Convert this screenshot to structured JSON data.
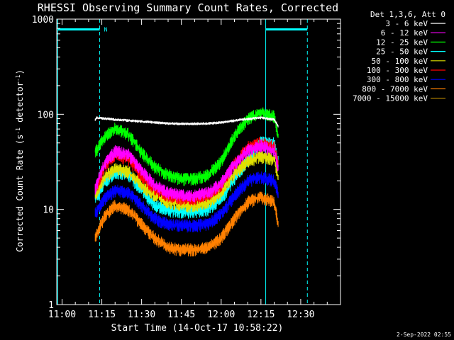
{
  "chart_data": {
    "type": "line",
    "title": "RHESSI Observing Summary Count Rates, Corrected",
    "xlabel": "Start Time (14-Oct-17 10:58:22)",
    "ylabel_main": "Corrected Count Rate (s",
    "ylabel_sup1": "-1",
    "ylabel_mid": " detector",
    "ylabel_sup2": "-1",
    "ylabel_end": ")",
    "xlim_min": [
      -2,
      105
    ],
    "ylim": [
      1,
      1000
    ],
    "y_scale": "log",
    "x_ticks": [
      {
        "t": 0,
        "label": "11:00"
      },
      {
        "t": 15,
        "label": "11:15"
      },
      {
        "t": 30,
        "label": "11:30"
      },
      {
        "t": 45,
        "label": "11:45"
      },
      {
        "t": 60,
        "label": "12:00"
      },
      {
        "t": 75,
        "label": "12:15"
      },
      {
        "t": 90,
        "label": "12:30"
      }
    ],
    "y_ticks": [
      {
        "v": 1,
        "label": "1"
      },
      {
        "v": 10,
        "label": "10"
      },
      {
        "v": 100,
        "label": "100"
      },
      {
        "v": 1000,
        "label": "1000"
      }
    ],
    "legend_header": "Det 1,3,6, Att 0",
    "legend_placement": "top-right",
    "series": [
      {
        "name": "3 - 6 keV",
        "color": "#ffffff",
        "x": [
          12.5,
          13,
          20,
          30,
          40,
          48,
          55,
          60,
          68,
          75,
          80,
          81.5
        ],
        "y": [
          88,
          92,
          88,
          84,
          80,
          79,
          80,
          82,
          88,
          92,
          88,
          75
        ]
      },
      {
        "name": "6 - 12 keV",
        "color": "#ff00ff",
        "x": [
          12.5,
          16,
          20,
          25,
          30,
          35,
          40,
          45,
          50,
          55,
          60,
          65,
          70,
          75,
          80,
          81.5
        ],
        "y": [
          17,
          30,
          41,
          38,
          26,
          18,
          15,
          14,
          14,
          15,
          19,
          30,
          42,
          47,
          42,
          28
        ]
      },
      {
        "name": "12 - 25 keV",
        "color": "#00ff00",
        "x": [
          12.5,
          16,
          20,
          25,
          30,
          35,
          40,
          45,
          50,
          55,
          60,
          65,
          70,
          75,
          80,
          81.5
        ],
        "y": [
          40,
          58,
          72,
          62,
          40,
          28,
          23,
          21,
          21,
          23,
          32,
          60,
          90,
          105,
          95,
          58
        ]
      },
      {
        "name": "25 - 50 keV",
        "color": "#00ffff",
        "x": [
          12.5,
          16,
          20,
          25,
          30,
          35,
          40,
          45,
          50,
          55,
          60,
          65,
          70,
          75,
          80,
          81.5
        ],
        "y": [
          13,
          19,
          25,
          23,
          16,
          11,
          9.8,
          9.5,
          9.5,
          10,
          13,
          21,
          33,
          52,
          50,
          32
        ]
      },
      {
        "name": "50 - 100 keV",
        "color": "#e0e000",
        "x": [
          12.5,
          16,
          20,
          25,
          30,
          35,
          40,
          45,
          50,
          55,
          60,
          65,
          70,
          75,
          80,
          81.5
        ],
        "y": [
          14,
          22,
          27,
          25,
          18,
          14,
          12,
          11,
          11,
          12,
          15,
          24,
          32,
          36,
          34,
          22
        ]
      },
      {
        "name": "100 - 300 keV",
        "color": "#ff0000",
        "x": [
          12.5,
          16,
          20,
          25,
          30,
          35,
          40,
          45,
          50,
          55,
          60,
          65,
          70,
          75,
          80,
          81.5
        ],
        "y": [
          16,
          28,
          38,
          34,
          23,
          16,
          14,
          13,
          13,
          14,
          18,
          30,
          45,
          50,
          46,
          30
        ]
      },
      {
        "name": "300 - 800 keV",
        "color": "#0000ff",
        "x": [
          12.5,
          16,
          20,
          25,
          30,
          35,
          40,
          45,
          50,
          55,
          60,
          65,
          70,
          75,
          80,
          81.5
        ],
        "y": [
          9,
          13,
          16,
          15,
          11,
          8,
          7,
          6.8,
          6.8,
          7,
          9,
          14,
          20,
          22,
          20,
          15
        ]
      },
      {
        "name": "800 - 7000 keV",
        "color": "#ff8000",
        "x": [
          12.5,
          16,
          20,
          25,
          30,
          35,
          40,
          45,
          50,
          55,
          60,
          65,
          70,
          75,
          80,
          81.5
        ],
        "y": [
          5,
          8.5,
          11,
          10,
          7,
          5,
          4,
          3.8,
          3.8,
          4,
          5,
          8,
          12,
          13.5,
          12,
          7
        ]
      },
      {
        "name": "7000 - 15000 keV",
        "color": "#b08000",
        "x": [],
        "y": []
      }
    ],
    "vlines": [
      {
        "t": -1.6,
        "color": "#00ffff",
        "style": "solid"
      },
      {
        "t": 14.2,
        "color": "#00ffff",
        "style": "dashed"
      },
      {
        "t": 76.8,
        "color": "#00ffff",
        "style": "solid"
      },
      {
        "t": 92.5,
        "color": "#00ffff",
        "style": "dashed"
      }
    ],
    "bars": [
      {
        "t0": -1.6,
        "t1": 14.2,
        "v": 780,
        "color": "#00ffff",
        "label": "N"
      },
      {
        "t0": 76.8,
        "t1": 92.5,
        "v": 780,
        "color": "#00ffff",
        "label": ""
      }
    ],
    "footer_date": "2-Sep-2022 02:55"
  }
}
